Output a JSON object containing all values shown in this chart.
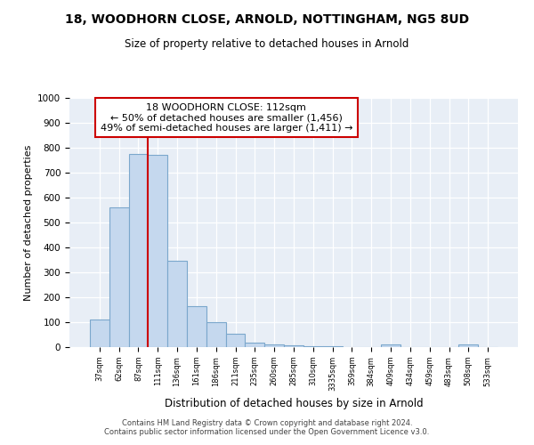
{
  "title1": "18, WOODHORN CLOSE, ARNOLD, NOTTINGHAM, NG5 8UD",
  "title2": "Size of property relative to detached houses in Arnold",
  "xlabel": "Distribution of detached houses by size in Arnold",
  "ylabel": "Number of detached properties",
  "categories": [
    "37sqm",
    "62sqm",
    "87sqm",
    "111sqm",
    "136sqm",
    "161sqm",
    "186sqm",
    "211sqm",
    "235sqm",
    "260sqm",
    "285sqm",
    "310sqm",
    "3335sqm",
    "359sqm",
    "384sqm",
    "409sqm",
    "434sqm",
    "459sqm",
    "483sqm",
    "508sqm",
    "533sqm"
  ],
  "values": [
    110,
    560,
    775,
    770,
    348,
    163,
    100,
    55,
    17,
    12,
    8,
    5,
    5,
    0,
    0,
    10,
    0,
    0,
    0,
    10,
    0
  ],
  "bar_color": "#c5d8ee",
  "bar_edge_color": "#7ba7cc",
  "vline_color": "#cc0000",
  "annotation_line1": "18 WOODHORN CLOSE: 112sqm",
  "annotation_line2": "← 50% of detached houses are smaller (1,456)",
  "annotation_line3": "49% of semi-detached houses are larger (1,411) →",
  "annotation_box_color": "#ffffff",
  "annotation_box_edge": "#cc0000",
  "ylim": [
    0,
    1000
  ],
  "yticks": [
    0,
    100,
    200,
    300,
    400,
    500,
    600,
    700,
    800,
    900,
    1000
  ],
  "footer1": "Contains HM Land Registry data © Crown copyright and database right 2024.",
  "footer2": "Contains public sector information licensed under the Open Government Licence v3.0.",
  "bg_color": "#ffffff",
  "plot_bg": "#e8eef6"
}
